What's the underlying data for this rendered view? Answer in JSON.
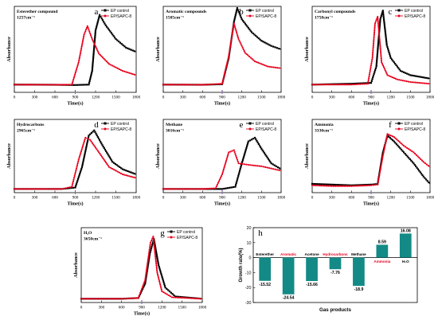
{
  "colors": {
    "ep": "#000000",
    "sapc": "#e8001c",
    "bar": "#138a86",
    "accent_label": "#e8001c"
  },
  "common": {
    "xlabel": "Time(s)",
    "ylabel": "Absorbance",
    "xticks": [
      "0",
      "300",
      "600",
      "900",
      "1200",
      "1500",
      "1800"
    ],
    "legend": [
      "EP control",
      "EP/SAPC-8"
    ]
  },
  "chart_data": [
    {
      "panel": "a",
      "type": "line",
      "title_lines": [
        "Esterether compound",
        "1257cm⁻¹"
      ],
      "xlim": [
        0,
        1800
      ],
      "ylim": [
        0,
        1
      ],
      "series": [
        {
          "name": "EP control",
          "x": [
            0,
            600,
            900,
            1100,
            1150,
            1200,
            1260,
            1350,
            1500,
            1650,
            1800
          ],
          "values": [
            0.09,
            0.088,
            0.085,
            0.09,
            0.25,
            0.72,
            0.9,
            0.78,
            0.62,
            0.52,
            0.47
          ]
        },
        {
          "name": "EP/SAPC-8",
          "x": [
            0,
            600,
            850,
            950,
            1030,
            1080,
            1150,
            1250,
            1400,
            1600,
            1800
          ],
          "values": [
            0.09,
            0.088,
            0.09,
            0.35,
            0.67,
            0.77,
            0.62,
            0.45,
            0.33,
            0.25,
            0.2
          ]
        }
      ]
    },
    {
      "panel": "b",
      "type": "line",
      "title_lines": [
        "Aromatic compounds",
        "1505cm⁻¹"
      ],
      "xlim": [
        0,
        1800
      ],
      "ylim": [
        0,
        1
      ],
      "series": [
        {
          "name": "EP control",
          "x": [
            0,
            600,
            900,
            1000,
            1080,
            1130,
            1200,
            1350,
            1500,
            1650,
            1800
          ],
          "values": [
            0.09,
            0.088,
            0.095,
            0.4,
            0.82,
            0.98,
            0.85,
            0.7,
            0.6,
            0.54,
            0.5
          ]
        },
        {
          "name": "EP/SAPC-8",
          "x": [
            0,
            600,
            900,
            1000,
            1080,
            1150,
            1250,
            1400,
            1600,
            1800
          ],
          "values": [
            0.09,
            0.088,
            0.1,
            0.42,
            0.8,
            0.62,
            0.46,
            0.36,
            0.3,
            0.28
          ]
        }
      ]
    },
    {
      "panel": "c",
      "type": "line",
      "title_lines": [
        "Carbonyl compounds",
        "1758cm⁻¹"
      ],
      "xlim": [
        0,
        1800
      ],
      "ylim": [
        0,
        1
      ],
      "series": [
        {
          "name": "EP control",
          "x": [
            0,
            600,
            900,
            980,
            1040,
            1080,
            1140,
            1200,
            1350,
            1500,
            1800
          ],
          "values": [
            0.09,
            0.1,
            0.11,
            0.3,
            0.85,
            0.95,
            0.55,
            0.4,
            0.25,
            0.2,
            0.16
          ]
        },
        {
          "name": "EP/SAPC-8",
          "x": [
            0,
            600,
            850,
            920,
            960,
            1000,
            1060,
            1150,
            1300,
            1500,
            1800
          ],
          "values": [
            0.09,
            0.09,
            0.1,
            0.4,
            0.8,
            0.88,
            0.35,
            0.2,
            0.15,
            0.12,
            0.1
          ]
        }
      ]
    },
    {
      "panel": "d",
      "type": "line",
      "title_lines": [
        "Hydrocarbons",
        "2965cm⁻¹"
      ],
      "xlim": [
        0,
        1800
      ],
      "ylim": [
        0,
        1
      ],
      "series": [
        {
          "name": "EP control",
          "x": [
            0,
            700,
            900,
            1000,
            1100,
            1180,
            1300,
            1450,
            1600,
            1800
          ],
          "values": [
            0.05,
            0.05,
            0.07,
            0.35,
            0.78,
            0.85,
            0.65,
            0.42,
            0.32,
            0.25
          ]
        },
        {
          "name": "EP/SAPC-8",
          "x": [
            0,
            700,
            850,
            950,
            1050,
            1120,
            1250,
            1400,
            1600,
            1800
          ],
          "values": [
            0.05,
            0.05,
            0.08,
            0.45,
            0.75,
            0.72,
            0.55,
            0.35,
            0.25,
            0.2
          ]
        }
      ]
    },
    {
      "panel": "e",
      "type": "line",
      "title_lines": [
        "Methane",
        "3016cm⁻¹"
      ],
      "xlim": [
        0,
        1800
      ],
      "ylim": [
        0,
        1
      ],
      "series": [
        {
          "name": "EP control",
          "x": [
            0,
            600,
            900,
            1100,
            1200,
            1300,
            1400,
            1500,
            1650,
            1800
          ],
          "values": [
            0.05,
            0.05,
            0.05,
            0.08,
            0.4,
            0.7,
            0.75,
            0.6,
            0.4,
            0.32
          ]
        },
        {
          "name": "EP/SAPC-8",
          "x": [
            0,
            600,
            800,
            900,
            1000,
            1080,
            1150,
            1300,
            1500,
            1650,
            1800
          ],
          "values": [
            0.05,
            0.05,
            0.06,
            0.25,
            0.55,
            0.58,
            0.4,
            0.38,
            0.36,
            0.33,
            0.3
          ]
        }
      ]
    },
    {
      "panel": "f",
      "type": "line",
      "title_lines": [
        "Ammonia",
        "3330cm⁻¹"
      ],
      "xlim": [
        0,
        1800
      ],
      "ylim": [
        0,
        1
      ],
      "series": [
        {
          "name": "EP control",
          "x": [
            0,
            300,
            600,
            900,
            1000,
            1080,
            1150,
            1250,
            1400,
            1550,
            1700,
            1800
          ],
          "values": [
            0.12,
            0.11,
            0.1,
            0.11,
            0.12,
            0.55,
            0.78,
            0.7,
            0.55,
            0.4,
            0.22,
            0.12
          ]
        },
        {
          "name": "EP/SAPC-8",
          "x": [
            0,
            300,
            600,
            900,
            1000,
            1080,
            1150,
            1250,
            1400,
            1550,
            1700,
            1800
          ],
          "values": [
            0.1,
            0.09,
            0.09,
            0.1,
            0.11,
            0.5,
            0.8,
            0.76,
            0.64,
            0.55,
            0.42,
            0.35
          ]
        }
      ]
    },
    {
      "panel": "g",
      "type": "line",
      "title_lines": [
        "H₂O",
        "3650cm⁻¹"
      ],
      "xlim": [
        0,
        1800
      ],
      "ylim": [
        0,
        1
      ],
      "series": [
        {
          "name": "EP control",
          "x": [
            0,
            600,
            850,
            950,
            1020,
            1080,
            1150,
            1250,
            1400,
            1800
          ],
          "values": [
            0.05,
            0.05,
            0.06,
            0.25,
            0.65,
            0.85,
            0.5,
            0.2,
            0.08,
            0.05
          ]
        },
        {
          "name": "EP/SAPC-8",
          "x": [
            0,
            600,
            850,
            950,
            1030,
            1070,
            1130,
            1200,
            1350,
            1800
          ],
          "values": [
            0.05,
            0.05,
            0.06,
            0.3,
            0.8,
            0.88,
            0.4,
            0.15,
            0.07,
            0.05
          ]
        }
      ]
    },
    {
      "panel": "h",
      "type": "bar",
      "ylabel": "Growth rate(%)",
      "xlabel": "Gas products",
      "ylim": [
        -30,
        20
      ],
      "yticks": [
        "20",
        "10",
        "0",
        "-10",
        "-20",
        "-30"
      ],
      "categories": [
        "Esterether",
        "Aromatic",
        "Acetone",
        "Hydrocarbons",
        "Methane",
        "Ammonia",
        "H₂O"
      ],
      "category_colors": [
        "#000000",
        "#e8001c",
        "#000000",
        "#e8001c",
        "#000000",
        "#e8001c",
        "#000000"
      ],
      "values": [
        -15.52,
        -24.54,
        -15.66,
        -7.76,
        -18.9,
        8.59,
        16.08
      ],
      "value_labels": [
        "-15.52",
        "-24.54",
        "-15.66",
        "-7.76",
        "-18.9",
        "8.59",
        "16.08"
      ]
    }
  ]
}
